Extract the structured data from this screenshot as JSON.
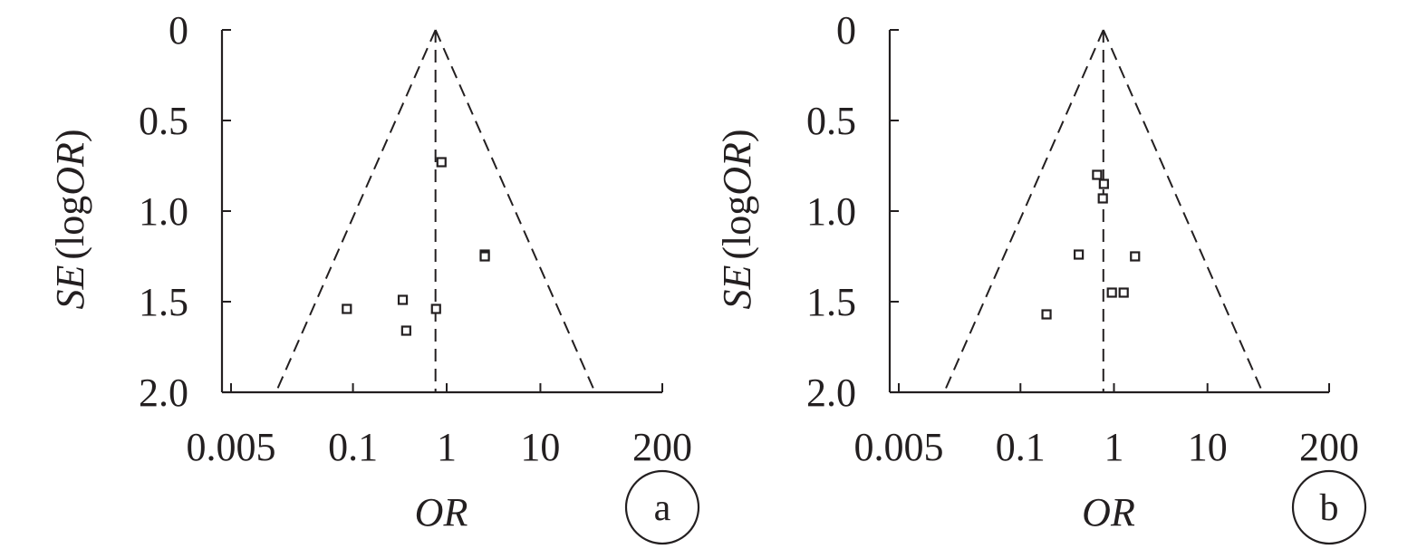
{
  "style": {
    "ink": "#231f20",
    "marker_fill": "#ffffff"
  },
  "chart_data": [
    {
      "type": "scatter",
      "panel_label": "a",
      "xlabel": "OR",
      "ylabel": {
        "italic_part": "SE",
        "open_paren": "(",
        "log_part": "log",
        "italic_or": "OR",
        "close_paren": ")"
      },
      "x_scale": "log",
      "xlim": [
        0.005,
        200
      ],
      "ylim": [
        0,
        2.0
      ],
      "y_inverted": true,
      "x_ticks": [
        0.005,
        0.1,
        1,
        10,
        200
      ],
      "x_tick_labels": [
        "0.005",
        "0.1",
        "1",
        "10",
        "200"
      ],
      "y_ticks": [
        0,
        0.5,
        1.0,
        1.5,
        2.0
      ],
      "y_tick_labels": [
        "0",
        "0.5",
        "1.0",
        "1.5",
        "2.0"
      ],
      "pooled_or": 0.76,
      "funnel_bottom_se": 2.0,
      "grid": false,
      "points": [
        {
          "or": 0.88,
          "se": 0.73
        },
        {
          "or": 2.55,
          "se": 1.24
        },
        {
          "or": 2.55,
          "se": 1.25
        },
        {
          "or": 0.34,
          "se": 1.49
        },
        {
          "or": 0.086,
          "se": 1.54
        },
        {
          "or": 0.77,
          "se": 1.54
        },
        {
          "or": 0.37,
          "se": 1.66
        }
      ]
    },
    {
      "type": "scatter",
      "panel_label": "b",
      "xlabel": "OR",
      "ylabel": {
        "italic_part": "SE",
        "open_paren": "(",
        "log_part": "log",
        "italic_or": "OR",
        "close_paren": ")"
      },
      "x_scale": "log",
      "xlim": [
        0.005,
        200
      ],
      "ylim": [
        0,
        2.0
      ],
      "y_inverted": true,
      "x_ticks": [
        0.005,
        0.1,
        1,
        10,
        200
      ],
      "x_tick_labels": [
        "0.005",
        "0.1",
        "1",
        "10",
        "200"
      ],
      "y_ticks": [
        0,
        0.5,
        1.0,
        1.5,
        2.0
      ],
      "y_tick_labels": [
        "0",
        "0.5",
        "1.0",
        "1.5",
        "2.0"
      ],
      "pooled_or": 0.77,
      "funnel_bottom_se": 2.0,
      "grid": false,
      "points": [
        {
          "or": 0.66,
          "se": 0.8
        },
        {
          "or": 0.78,
          "se": 0.85
        },
        {
          "or": 0.76,
          "se": 0.93
        },
        {
          "or": 0.42,
          "se": 1.24
        },
        {
          "or": 1.68,
          "se": 1.25
        },
        {
          "or": 0.95,
          "se": 1.45
        },
        {
          "or": 1.27,
          "se": 1.45
        },
        {
          "or": 0.19,
          "se": 1.57
        }
      ]
    }
  ]
}
